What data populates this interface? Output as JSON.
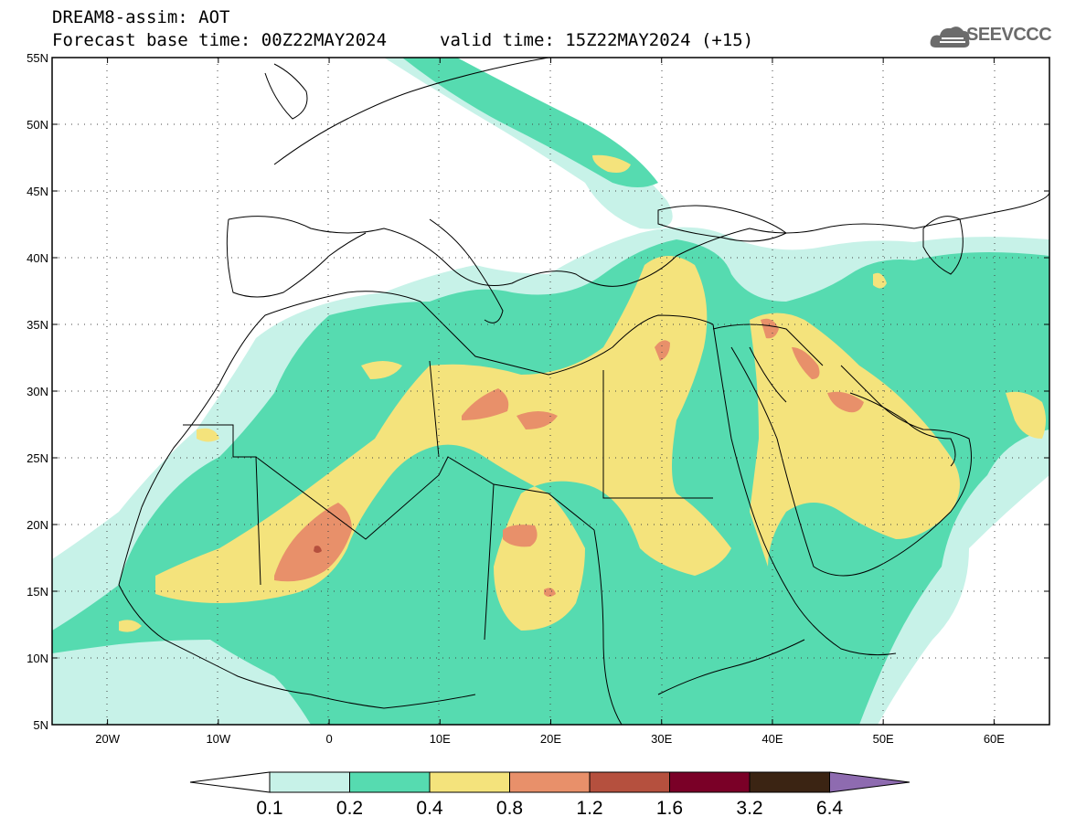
{
  "header": {
    "model_title": "DREAM8-assim: AOT",
    "base_time": "Forecast base time: 00Z22MAY2024",
    "valid_time": "valid time: 15Z22MAY2024 (+15)"
  },
  "logo": {
    "text": "SEEVCCC",
    "icon": "cloud-icon"
  },
  "map": {
    "lat_labels": [
      "55N",
      "50N",
      "45N",
      "40N",
      "35N",
      "30N",
      "25N",
      "20N",
      "15N",
      "10N",
      "5N"
    ],
    "lon_labels": [
      "20W",
      "10W",
      "0",
      "10E",
      "20E",
      "30E",
      "40E",
      "50E",
      "60E"
    ],
    "lat_range": [
      5,
      55
    ],
    "lon_range": [
      -25,
      65
    ],
    "grid": "dotted"
  },
  "colorbar": {
    "labels": [
      "0.1",
      "0.2",
      "0.4",
      "0.8",
      "1.2",
      "1.6",
      "3.2",
      "6.4"
    ],
    "colors": [
      "#c7f2e8",
      "#56dbb0",
      "#f4e37c",
      "#e8906a",
      "#b5503e",
      "#7a0027",
      "#3b2413",
      "#8e6bb0"
    ]
  }
}
